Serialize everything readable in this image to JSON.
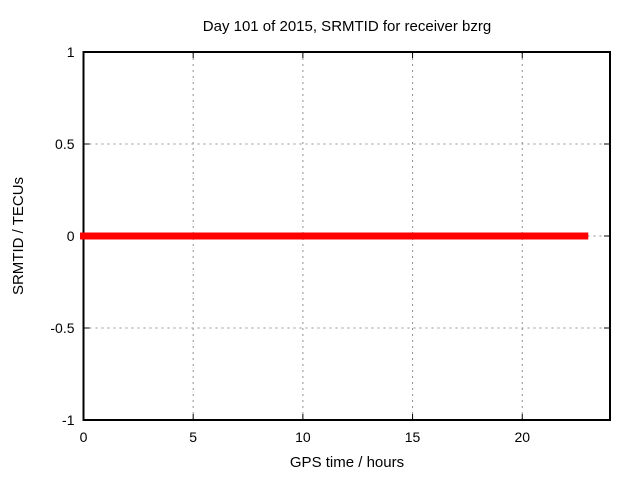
{
  "window": {
    "background": "#ffffff",
    "text_color": "#000000",
    "border_color": "#000000"
  },
  "chart_data": {
    "type": "line",
    "title": "Day 101 of 2015, SRMTID for receiver bzrg",
    "xlabel": "GPS time / hours",
    "ylabel": "SRMTID / TECUs",
    "xlim": [
      0,
      24
    ],
    "ylim": [
      -1,
      1
    ],
    "xticks": [
      0,
      5,
      10,
      15,
      20
    ],
    "xtick_labels": [
      "0",
      "5",
      "10",
      "15",
      "20"
    ],
    "yticks": [
      -1,
      -0.5,
      0,
      0.5,
      1
    ],
    "ytick_labels": [
      "-1",
      "-0.5",
      "0",
      "0.5",
      "1"
    ],
    "grid": true,
    "grid_color": "#909090",
    "legend": "none",
    "series": [
      {
        "name": "SRMTID",
        "color": "#ff0000",
        "linewidth": 7,
        "x": [
          0,
          22.85
        ],
        "y": [
          0,
          0
        ]
      }
    ]
  }
}
